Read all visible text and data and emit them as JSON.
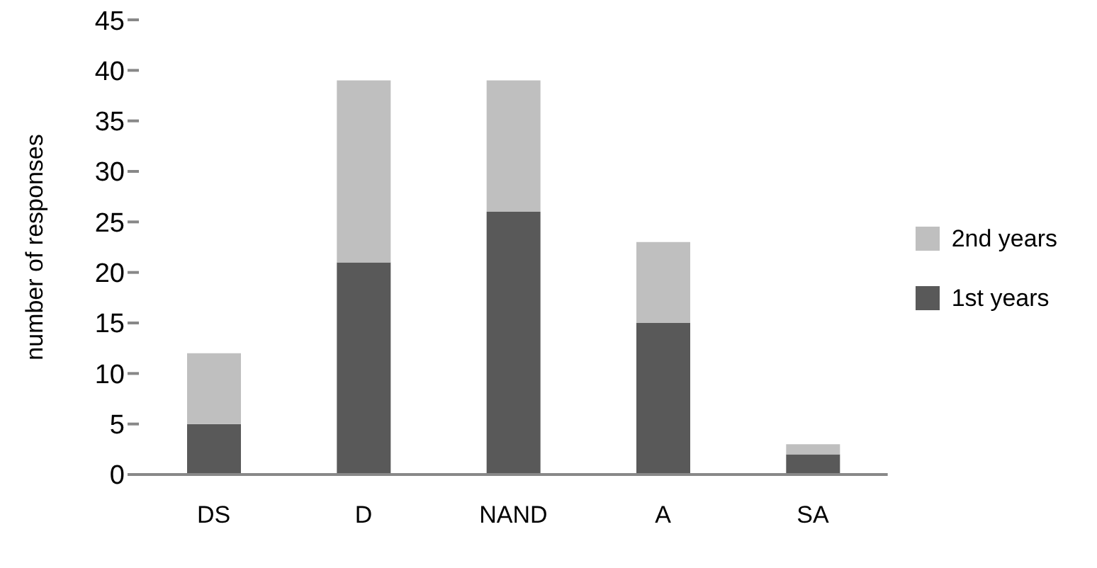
{
  "chart_data": {
    "type": "bar",
    "stacked": true,
    "ylabel": "number of responses",
    "categories": [
      "DS",
      "D",
      "NAND",
      "A",
      "SA"
    ],
    "series": [
      {
        "name": "1st years",
        "color": "#595959",
        "values": [
          5,
          21,
          26,
          15,
          2
        ]
      },
      {
        "name": "2nd years",
        "color": "#bfbfbf",
        "values": [
          7,
          18,
          13,
          8,
          1
        ]
      }
    ],
    "ylim": [
      0,
      45
    ],
    "yticks": [
      0,
      5,
      10,
      15,
      20,
      25,
      30,
      35,
      40,
      45
    ],
    "grid": false,
    "legend": "right"
  }
}
